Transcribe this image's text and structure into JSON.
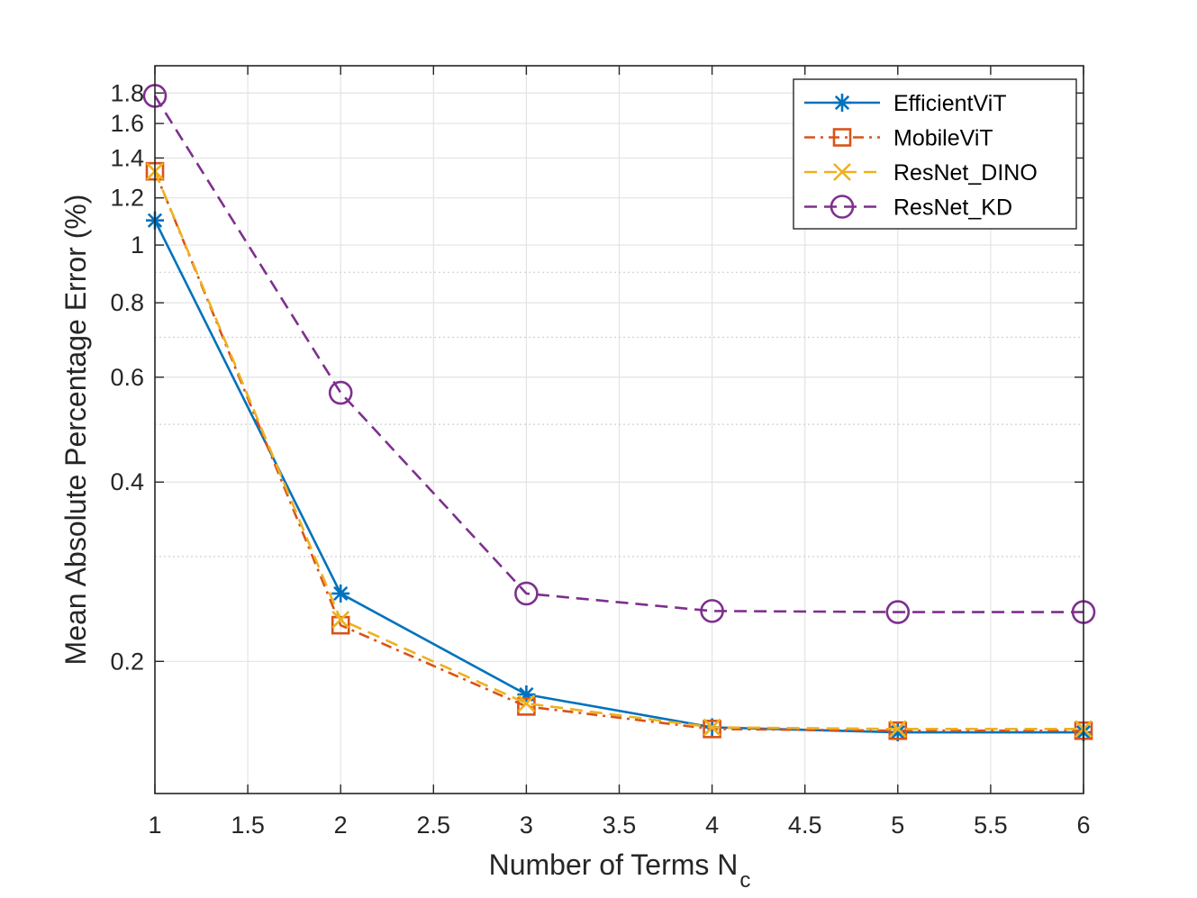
{
  "chart_data": {
    "type": "line",
    "yscale": "log",
    "x": [
      1,
      2,
      3,
      4,
      5,
      6
    ],
    "xlim": [
      1,
      6
    ],
    "ylim": [
      0.12,
      2.0
    ],
    "xticks": [
      "1",
      "1.5",
      "2",
      "2.5",
      "3",
      "3.5",
      "4",
      "4.5",
      "5",
      "5.5",
      "6"
    ],
    "yticks": [
      "0.2",
      "0.4",
      "0.6",
      "0.8",
      "1",
      "1.2",
      "1.4",
      "1.6",
      "1.8"
    ],
    "xlabel": "Number of Terms N",
    "xlabel_sub": "c",
    "ylabel": "Mean Absolute Percentage Error (%)",
    "grid": true,
    "legend_position": "top-right",
    "series": [
      {
        "name": "EfficientViT",
        "values": [
          1.1,
          0.26,
          0.176,
          0.155,
          0.152,
          0.152
        ],
        "color": "#0072BD",
        "dash": "solid",
        "marker": "asterisk"
      },
      {
        "name": "MobileViT",
        "values": [
          1.33,
          0.23,
          0.168,
          0.154,
          0.153,
          0.153
        ],
        "color": "#D95319",
        "dash": "dashdot",
        "marker": "square"
      },
      {
        "name": "ResNet_DINO",
        "values": [
          1.33,
          0.235,
          0.17,
          0.155,
          0.154,
          0.154
        ],
        "color": "#EDB120",
        "dash": "dashed",
        "marker": "x"
      },
      {
        "name": "ResNet_KD",
        "values": [
          1.78,
          0.565,
          0.26,
          0.243,
          0.242,
          0.242
        ],
        "color": "#7E2F8E",
        "dash": "dashed",
        "marker": "circle"
      }
    ]
  }
}
